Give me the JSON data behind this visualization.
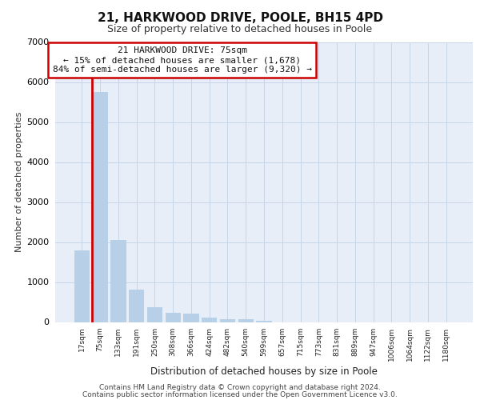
{
  "title1": "21, HARKWOOD DRIVE, POOLE, BH15 4PD",
  "title2": "Size of property relative to detached houses in Poole",
  "xlabel": "Distribution of detached houses by size in Poole",
  "ylabel": "Number of detached properties",
  "categories": [
    "17sqm",
    "75sqm",
    "133sqm",
    "191sqm",
    "250sqm",
    "308sqm",
    "366sqm",
    "424sqm",
    "482sqm",
    "540sqm",
    "599sqm",
    "657sqm",
    "715sqm",
    "773sqm",
    "831sqm",
    "889sqm",
    "947sqm",
    "1006sqm",
    "1064sqm",
    "1122sqm",
    "1180sqm"
  ],
  "values": [
    1800,
    5750,
    2060,
    820,
    380,
    240,
    220,
    120,
    80,
    75,
    40,
    0,
    0,
    0,
    0,
    0,
    0,
    0,
    0,
    0,
    0
  ],
  "highlight_index": 1,
  "bar_color": "#b8cfe8",
  "highlight_bar_color": "#b8cfe8",
  "highlight_line_color": "#cc0000",
  "grid_color": "#c8d4e8",
  "background_color": "#e8eef8",
  "annotation_text": "21 HARKWOOD DRIVE: 75sqm\n← 15% of detached houses are smaller (1,678)\n84% of semi-detached houses are larger (9,320) →",
  "annotation_box_color": "#ffffff",
  "annotation_border_color": "#cc0000",
  "footer1": "Contains HM Land Registry data © Crown copyright and database right 2024.",
  "footer2": "Contains public sector information licensed under the Open Government Licence v3.0.",
  "ylim": [
    0,
    7000
  ],
  "yticks": [
    0,
    1000,
    2000,
    3000,
    4000,
    5000,
    6000,
    7000
  ]
}
